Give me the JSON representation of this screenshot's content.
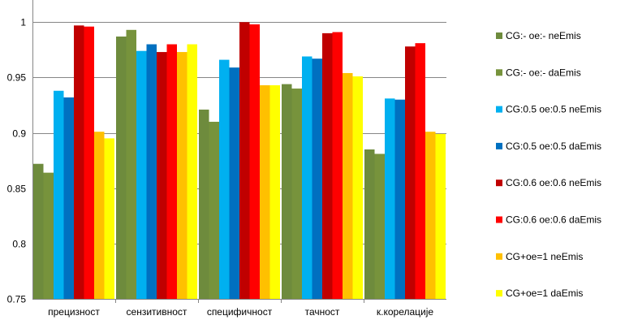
{
  "chart_data": {
    "type": "bar",
    "categories": [
      "прецизност",
      "сензитивност",
      "специфичност",
      "тачност",
      "к.корелације"
    ],
    "series": [
      {
        "name": "CG:- oe:- neEmis",
        "color": "#6e8b3d",
        "values": [
          0.872,
          0.987,
          0.921,
          0.944,
          0.885
        ]
      },
      {
        "name": "CG:- oe:- daEmis",
        "color": "#77933c",
        "values": [
          0.864,
          0.993,
          0.91,
          0.94,
          0.881
        ]
      },
      {
        "name": "CG:0.5 oe:0.5 neEmis",
        "color": "#00b0f0",
        "values": [
          0.938,
          0.974,
          0.966,
          0.969,
          0.931
        ]
      },
      {
        "name": "CG:0.5 oe:0.5 daEmis",
        "color": "#0070c0",
        "values": [
          0.932,
          0.98,
          0.959,
          0.967,
          0.93
        ]
      },
      {
        "name": "CG:0.6 oe:0.6 neEmis",
        "color": "#c00000",
        "values": [
          0.997,
          0.973,
          1.0,
          0.99,
          0.978
        ]
      },
      {
        "name": "CG:0.6 oe:0.6 daEmis",
        "color": "#ff0000",
        "values": [
          0.996,
          0.98,
          0.998,
          0.991,
          0.981
        ]
      },
      {
        "name": "CG+oe=1 neEmis",
        "color": "#ffc000",
        "values": [
          0.901,
          0.973,
          0.943,
          0.954,
          0.901
        ]
      },
      {
        "name": "CG+oe=1 daEmis",
        "color": "#ffff00",
        "values": [
          0.895,
          0.98,
          0.943,
          0.951,
          0.899
        ]
      }
    ],
    "y_ticks": [
      "0.75",
      "0.8",
      "0.85",
      "0.9",
      "0.95",
      "1"
    ],
    "ylim": [
      0.75,
      1.02
    ],
    "grid": true,
    "legend_position": "right"
  }
}
